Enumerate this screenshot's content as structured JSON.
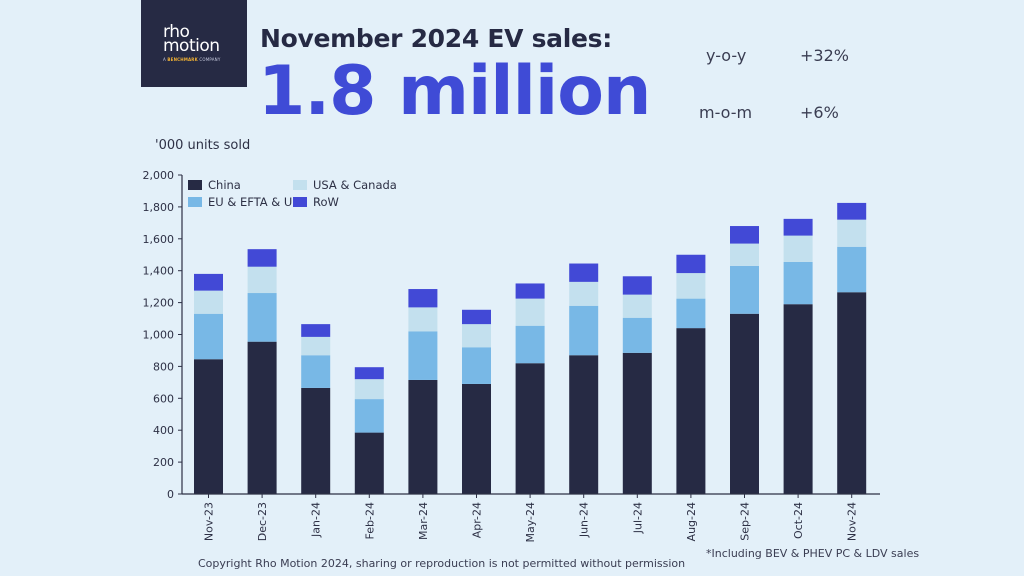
{
  "brand": {
    "logo_line1": "rho",
    "logo_line2": "motion",
    "logo_tagline_prefix": "A ",
    "logo_tagline_brand": "BENCHMARK",
    "logo_tagline_suffix": " COMPANY"
  },
  "header": {
    "title": "November 2024 EV sales:",
    "headline_value": "1.8 million",
    "kpis": [
      {
        "label": "y-o-y",
        "value": "+32%"
      },
      {
        "label": "m-o-m",
        "value": "+6%"
      }
    ]
  },
  "footer": {
    "copyright": "Copyright Rho Motion 2024, sharing or reproduction is not permitted without permission",
    "footnote": "*Including BEV & PHEV PC & LDV sales"
  },
  "colors": {
    "background": "#e3f0f9",
    "china": "#262a44",
    "eu": "#78b8e6",
    "usa": "#c3e0ee",
    "row": "#4249d6",
    "headline": "#3f4bd6"
  },
  "chart_data": {
    "type": "bar",
    "stacked": true,
    "title": "",
    "ylabel": "'000 units sold",
    "xlabel": "",
    "ylim": [
      0,
      2000
    ],
    "yticks": [
      0,
      200,
      400,
      600,
      800,
      1000,
      1200,
      1400,
      1600,
      1800,
      2000
    ],
    "ytick_labels": [
      "0",
      "200",
      "400",
      "600",
      "800",
      "1,000",
      "1,200",
      "1,400",
      "1,600",
      "1,800",
      "2,000"
    ],
    "grid": false,
    "legend_position": "top-left",
    "categories": [
      "Nov-23",
      "Dec-23",
      "Jan-24",
      "Feb-24",
      "Mar-24",
      "Apr-24",
      "May-24",
      "Jun-24",
      "Jul-24",
      "Aug-24",
      "Sep-24",
      "Oct-24",
      "Nov-24"
    ],
    "series": [
      {
        "name": "China",
        "color": "#262a44",
        "values": [
          845,
          955,
          665,
          385,
          715,
          690,
          820,
          870,
          885,
          1040,
          1130,
          1190,
          1265
        ]
      },
      {
        "name": "EU & EFTA & UK",
        "color": "#78b8e6",
        "values": [
          285,
          305,
          205,
          210,
          305,
          230,
          235,
          310,
          220,
          185,
          300,
          265,
          285
        ]
      },
      {
        "name": "USA & Canada",
        "color": "#c3e0ee",
        "values": [
          145,
          165,
          115,
          125,
          150,
          145,
          170,
          150,
          145,
          160,
          140,
          165,
          170
        ]
      },
      {
        "name": "RoW",
        "color": "#4249d6",
        "values": [
          105,
          110,
          80,
          75,
          115,
          90,
          95,
          115,
          115,
          115,
          110,
          105,
          105
        ]
      }
    ],
    "legend_order": [
      "China",
      "USA & Canada",
      "EU & EFTA & UK",
      "RoW"
    ]
  }
}
